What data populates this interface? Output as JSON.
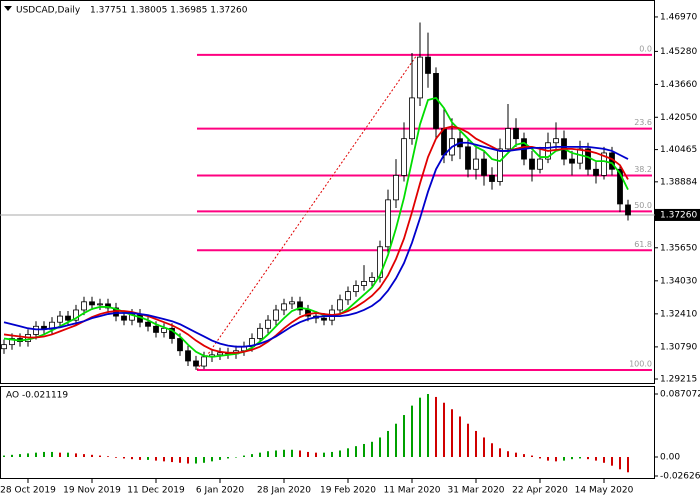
{
  "chart_data": [
    {
      "type": "candlestick",
      "title": "USDCAD,Daily",
      "subtitle": "1.37751 1.38005 1.36985 1.37260",
      "up_color": "#ffffff",
      "down_color": "#000000",
      "candle_stroke": "#000000",
      "ylim": [
        1.2897,
        1.47801
      ],
      "yticks": [
        {
          "value": 1.4697,
          "label": "1.46970"
        },
        {
          "value": 1.4528,
          "label": "1.45280"
        },
        {
          "value": 1.4366,
          "label": "1.43660"
        },
        {
          "value": 1.4205,
          "label": "1.42050"
        },
        1.40465,
        1.38884,
        {
          "value": 1.3565,
          "label": "1.35650"
        },
        {
          "value": 1.3403,
          "label": "1.34030"
        },
        {
          "value": 1.3241,
          "label": "1.32410"
        },
        {
          "value": 1.3079,
          "label": "1.30790"
        },
        1.29215
      ],
      "current_price": {
        "value": 1.3726,
        "label": "1.37260"
      },
      "open": [
        1.307,
        1.309,
        1.312,
        1.3105,
        1.314,
        1.318,
        1.3165,
        1.32,
        1.323,
        1.321,
        1.326,
        1.33,
        1.3285,
        1.329,
        1.327,
        1.323,
        1.321,
        1.324,
        1.32,
        1.318,
        1.315,
        1.317,
        1.312,
        1.306,
        1.301,
        1.2985,
        1.303,
        1.304,
        1.305,
        1.3045,
        1.306,
        1.308,
        1.312,
        1.317,
        1.321,
        1.326,
        1.329,
        1.33,
        1.326,
        1.323,
        1.322,
        1.321,
        1.326,
        1.331,
        1.335,
        1.338,
        1.34,
        1.342,
        1.357,
        1.38,
        1.392,
        1.41,
        1.43,
        1.45,
        1.442,
        1.415,
        1.402,
        1.41,
        1.406,
        1.395,
        1.4,
        1.392,
        1.389,
        1.405,
        1.415,
        1.41,
        1.4,
        1.395,
        1.4,
        1.408,
        1.41,
        1.4,
        1.398,
        1.405,
        1.395,
        1.392,
        1.403,
        1.395,
        1.37751
      ],
      "high": [
        1.3115,
        1.3145,
        1.3145,
        1.3165,
        1.3205,
        1.3205,
        1.3225,
        1.3255,
        1.3255,
        1.3285,
        1.3325,
        1.3325,
        1.3315,
        1.3315,
        1.3295,
        1.3255,
        1.3265,
        1.3265,
        1.3225,
        1.3205,
        1.3195,
        1.3195,
        1.3145,
        1.3085,
        1.3035,
        1.3055,
        1.3065,
        1.3075,
        1.3075,
        1.3085,
        1.3105,
        1.3145,
        1.3195,
        1.3235,
        1.3285,
        1.3315,
        1.3325,
        1.3325,
        1.3285,
        1.3255,
        1.3245,
        1.3285,
        1.3335,
        1.3375,
        1.3405,
        1.348,
        1.3445,
        1.36,
        1.385,
        1.4,
        1.418,
        1.452,
        1.467,
        1.462,
        1.445,
        1.425,
        1.42,
        1.415,
        1.41,
        1.406,
        1.404,
        1.396,
        1.41,
        1.427,
        1.42,
        1.413,
        1.404,
        1.406,
        1.413,
        1.418,
        1.414,
        1.404,
        1.409,
        1.408,
        1.399,
        1.406,
        1.406,
        1.397,
        1.38005
      ],
      "low": [
        1.3045,
        1.3065,
        1.308,
        1.308,
        1.3115,
        1.314,
        1.314,
        1.3175,
        1.3185,
        1.3185,
        1.3235,
        1.326,
        1.326,
        1.3245,
        1.3205,
        1.3185,
        1.3185,
        1.3175,
        1.3155,
        1.3125,
        1.3125,
        1.3095,
        1.3035,
        1.2985,
        1.2966,
        1.297,
        1.3005,
        1.3015,
        1.302,
        1.302,
        1.3035,
        1.3055,
        1.3095,
        1.3145,
        1.3185,
        1.3235,
        1.3265,
        1.3235,
        1.3205,
        1.3195,
        1.3185,
        1.3185,
        1.3235,
        1.3285,
        1.3325,
        1.3355,
        1.3375,
        1.3395,
        1.354,
        1.376,
        1.389,
        1.407,
        1.426,
        1.435,
        1.41,
        1.398,
        1.399,
        1.4,
        1.391,
        1.39,
        1.387,
        1.385,
        1.387,
        1.403,
        1.406,
        1.397,
        1.389,
        1.393,
        1.398,
        1.404,
        1.397,
        1.392,
        1.395,
        1.392,
        1.388,
        1.39,
        1.392,
        1.374,
        1.36985
      ],
      "close": [
        1.309,
        1.312,
        1.3105,
        1.314,
        1.318,
        1.3165,
        1.32,
        1.323,
        1.321,
        1.326,
        1.33,
        1.3285,
        1.329,
        1.327,
        1.323,
        1.321,
        1.324,
        1.32,
        1.318,
        1.315,
        1.317,
        1.312,
        1.306,
        1.301,
        1.2985,
        1.303,
        1.304,
        1.305,
        1.3045,
        1.306,
        1.308,
        1.312,
        1.317,
        1.321,
        1.326,
        1.329,
        1.33,
        1.326,
        1.323,
        1.322,
        1.321,
        1.326,
        1.331,
        1.335,
        1.338,
        1.34,
        1.342,
        1.357,
        1.38,
        1.392,
        1.41,
        1.43,
        1.45,
        1.442,
        1.415,
        1.402,
        1.41,
        1.406,
        1.395,
        1.4,
        1.392,
        1.389,
        1.405,
        1.415,
        1.41,
        1.4,
        1.395,
        1.4,
        1.408,
        1.41,
        1.4,
        1.398,
        1.405,
        1.395,
        1.392,
        1.403,
        1.395,
        1.378,
        1.3726
      ],
      "series": [
        {
          "color": "#00dd00",
          "values": [
            1.312,
            1.3115,
            1.311,
            1.3115,
            1.3125,
            1.314,
            1.316,
            1.318,
            1.32,
            1.322,
            1.3245,
            1.3265,
            1.3275,
            1.3275,
            1.3265,
            1.325,
            1.3235,
            1.3225,
            1.321,
            1.319,
            1.3175,
            1.316,
            1.313,
            1.309,
            1.3055,
            1.3035,
            1.303,
            1.3035,
            1.304,
            1.3045,
            1.3055,
            1.3075,
            1.3105,
            1.314,
            1.318,
            1.322,
            1.3255,
            1.327,
            1.3265,
            1.325,
            1.3235,
            1.323,
            1.324,
            1.3265,
            1.33,
            1.3335,
            1.337,
            1.343,
            1.353,
            1.366,
            1.381,
            1.399,
            1.417,
            1.429,
            1.43,
            1.425,
            1.418,
            1.414,
            1.41,
            1.406,
            1.404,
            1.4,
            1.399,
            1.403,
            1.407,
            1.408,
            1.405,
            1.401,
            1.401,
            1.404,
            1.405,
            1.403,
            1.402,
            1.401,
            1.399,
            1.399,
            1.398,
            1.393,
            1.385
          ]
        },
        {
          "color": "#e00000",
          "values": [
            1.314,
            1.3135,
            1.313,
            1.3125,
            1.3125,
            1.313,
            1.314,
            1.3155,
            1.317,
            1.3185,
            1.3205,
            1.3225,
            1.324,
            1.325,
            1.3255,
            1.3255,
            1.325,
            1.324,
            1.323,
            1.3215,
            1.32,
            1.3185,
            1.3165,
            1.314,
            1.311,
            1.3085,
            1.3065,
            1.3055,
            1.305,
            1.305,
            1.3055,
            1.3065,
            1.308,
            1.3105,
            1.3135,
            1.317,
            1.32,
            1.3225,
            1.324,
            1.3245,
            1.324,
            1.3235,
            1.324,
            1.3255,
            1.3275,
            1.33,
            1.333,
            1.337,
            1.343,
            1.351,
            1.361,
            1.374,
            1.388,
            1.401,
            1.41,
            1.415,
            1.416,
            1.415,
            1.413,
            1.41,
            1.408,
            1.406,
            1.404,
            1.404,
            1.405,
            1.406,
            1.406,
            1.405,
            1.404,
            1.4045,
            1.405,
            1.405,
            1.4045,
            1.404,
            1.403,
            1.4015,
            1.4,
            1.397,
            1.39
          ]
        },
        {
          "color": "#0000cc",
          "values": [
            1.32,
            1.319,
            1.318,
            1.317,
            1.3165,
            1.3165,
            1.317,
            1.3175,
            1.3185,
            1.3195,
            1.3205,
            1.322,
            1.323,
            1.324,
            1.3245,
            1.3245,
            1.3245,
            1.324,
            1.3235,
            1.3225,
            1.3215,
            1.3205,
            1.319,
            1.317,
            1.315,
            1.313,
            1.311,
            1.3095,
            1.3085,
            1.308,
            1.308,
            1.3085,
            1.3095,
            1.311,
            1.313,
            1.3155,
            1.318,
            1.32,
            1.3215,
            1.3225,
            1.323,
            1.323,
            1.323,
            1.3235,
            1.3245,
            1.326,
            1.328,
            1.331,
            1.3355,
            1.3415,
            1.349,
            1.359,
            1.371,
            1.384,
            1.395,
            1.402,
            1.406,
            1.408,
            1.408,
            1.407,
            1.406,
            1.405,
            1.404,
            1.404,
            1.4045,
            1.405,
            1.4055,
            1.4055,
            1.4055,
            1.406,
            1.406,
            1.406,
            1.406,
            1.406,
            1.4055,
            1.405,
            1.404,
            1.402,
            1.4
          ]
        }
      ],
      "fib_color": "#ff0080",
      "fib_levels": [
        {
          "label": "0.0",
          "price": 1.45111
        },
        {
          "label": "23.6",
          "price": 1.41493
        },
        {
          "label": "38.2",
          "price": 1.39195
        },
        {
          "label": "50.0",
          "price": 1.37434
        },
        {
          "label": "61.8",
          "price": 1.35527
        },
        {
          "label": "100.0",
          "price": 1.29659
        }
      ]
    },
    {
      "type": "bar",
      "title": "AO -0.021119",
      "up_color": "#00a000",
      "down_color": "#d00000",
      "ylim": [
        -0.02902,
        0.09675
      ],
      "yticks": [
        0.087072,
        {
          "value": 0,
          "label": "0.00"
        },
        -0.026268
      ],
      "categories": [
        null,
        null,
        null,
        "28 Oct 2019",
        null,
        null,
        null,
        null,
        null,
        null,
        null,
        "19 Nov 2019",
        null,
        null,
        null,
        null,
        null,
        null,
        null,
        "11 Dec 2019",
        null,
        null,
        null,
        null,
        null,
        null,
        null,
        "6 Jan 2020",
        null,
        null,
        null,
        null,
        null,
        null,
        null,
        "28 Jan 2020",
        null,
        null,
        null,
        null,
        null,
        null,
        null,
        "19 Feb 2020",
        null,
        null,
        null,
        null,
        null,
        null,
        null,
        "11 Mar 2020",
        null,
        null,
        null,
        null,
        null,
        null,
        null,
        "31 Mar 2020",
        null,
        null,
        null,
        null,
        null,
        null,
        null,
        "22 Apr 2020",
        null,
        null,
        null,
        null,
        null,
        null,
        null,
        "14 May 2020",
        null,
        null,
        null
      ],
      "values": [
        0.002,
        0.003,
        0.004,
        0.005,
        0.006,
        0.007,
        0.007,
        0.006,
        0.006,
        0.005,
        0.004,
        0.003,
        0.002,
        0.001,
        -0.001,
        -0.002,
        -0.003,
        -0.004,
        -0.004,
        -0.005,
        -0.006,
        -0.007,
        -0.008,
        -0.009,
        -0.009,
        -0.008,
        -0.006,
        -0.004,
        -0.002,
        0.0,
        0.002,
        0.004,
        0.006,
        0.008,
        0.009,
        0.01,
        0.01,
        0.009,
        0.007,
        0.006,
        0.006,
        0.007,
        0.009,
        0.012,
        0.015,
        0.018,
        0.021,
        0.027,
        0.036,
        0.046,
        0.058,
        0.071,
        0.082,
        0.087072,
        0.083,
        0.075,
        0.066,
        0.056,
        0.046,
        0.036,
        0.027,
        0.019,
        0.012,
        0.008,
        0.006,
        0.004,
        0.002,
        -0.002,
        -0.005,
        -0.006,
        -0.005,
        -0.003,
        -0.002,
        -0.003,
        -0.005,
        -0.008,
        -0.012,
        -0.017,
        -0.021119
      ]
    }
  ]
}
